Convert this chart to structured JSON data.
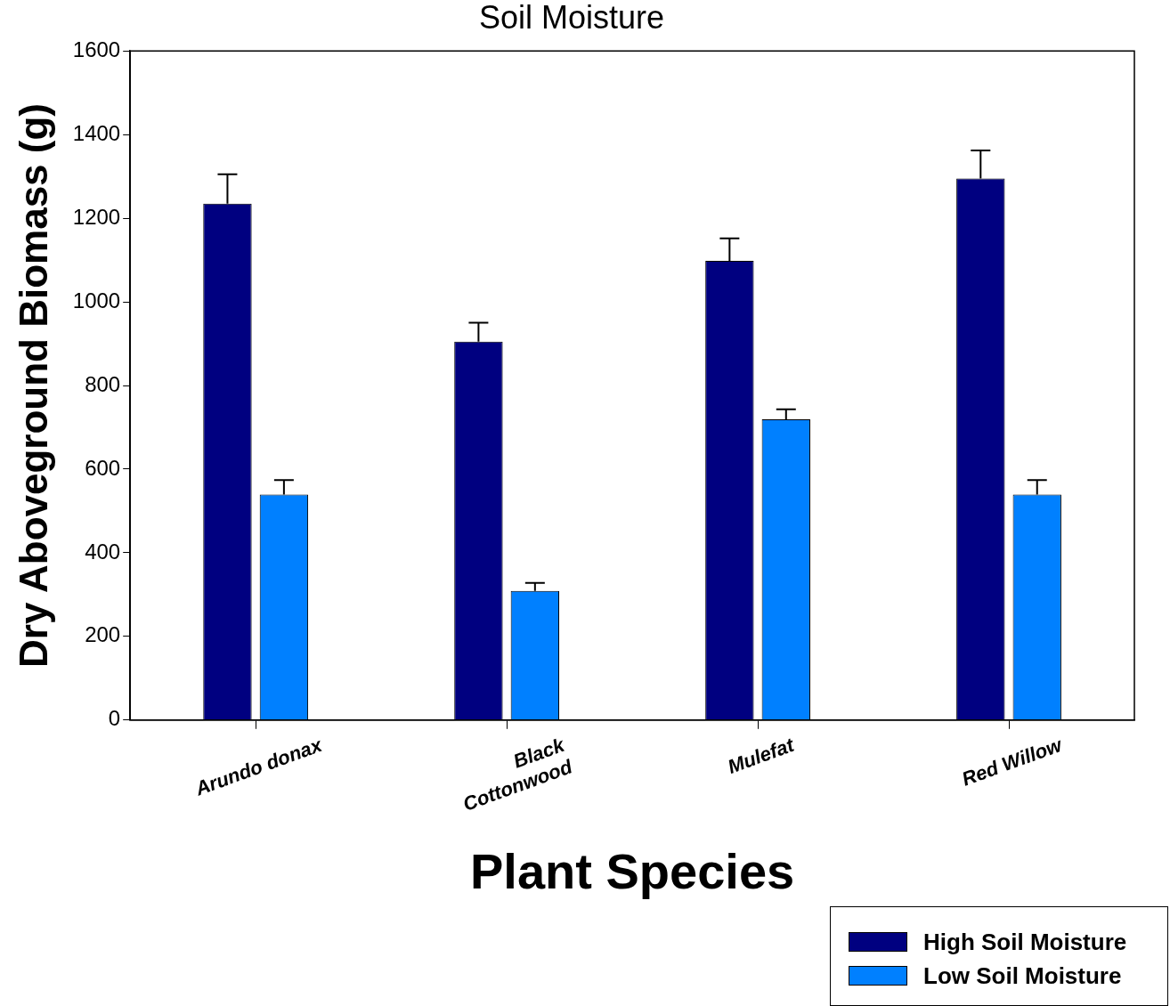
{
  "chart_data": {
    "type": "bar",
    "title": "Soil Moisture",
    "xlabel": "Plant Species",
    "ylabel": "Dry Aboveground Biomass (g)",
    "categories": [
      "Arundo donax",
      "Black Cottonwood",
      "Mulefat",
      "Red Willow"
    ],
    "series": [
      {
        "name": "High Soil Moisture",
        "color": "#000080",
        "values": [
          1235,
          905,
          1098,
          1295
        ],
        "errors": [
          [
            1235,
            1305
          ],
          [
            905,
            950
          ],
          [
            1098,
            1152
          ],
          [
            1295,
            1362
          ]
        ]
      },
      {
        "name": "Low Soil Moisture",
        "color": "#0080ff",
        "values": [
          539,
          309,
          719,
          539
        ],
        "errors": [
          [
            539,
            574
          ],
          [
            309,
            328
          ],
          [
            719,
            743
          ],
          [
            539,
            574
          ]
        ]
      }
    ],
    "ylim": [
      0,
      1600
    ],
    "yticks": [
      0,
      200,
      400,
      600,
      800,
      1000,
      1200,
      1400,
      1600
    ],
    "grid": false,
    "legend": "bottom right"
  }
}
